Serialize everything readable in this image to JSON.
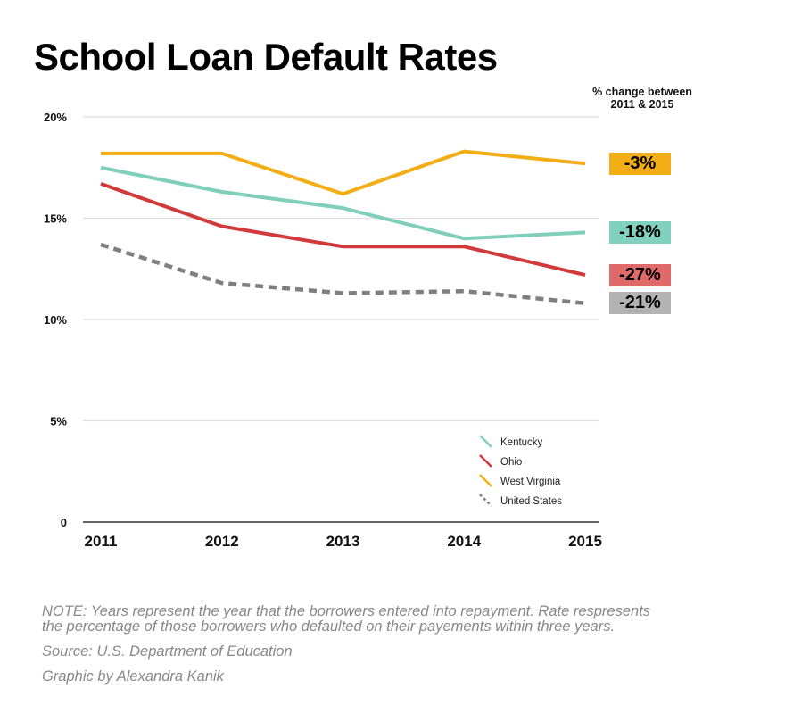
{
  "chart_data": {
    "type": "line",
    "title": "School Loan Default Rates",
    "xlabel": "",
    "ylabel": "",
    "x": [
      "2011",
      "2012",
      "2013",
      "2014",
      "2015"
    ],
    "ylim": [
      0,
      20
    ],
    "yticks": [
      0,
      5,
      10,
      15,
      20
    ],
    "ytick_labels": [
      "0",
      "5%",
      "10%",
      "15%",
      "20%"
    ],
    "grid": true,
    "legend_position": "bottom-right",
    "series": [
      {
        "name": "Kentucky",
        "values": [
          17.5,
          16.3,
          15.5,
          14.0,
          14.3
        ],
        "color": "#7fcfbb",
        "dashed": false,
        "change_label": "-18%",
        "badge_color": "#80d1bd"
      },
      {
        "name": "Ohio",
        "values": [
          16.7,
          14.6,
          13.6,
          13.6,
          12.2
        ],
        "color": "#d13a3a",
        "dashed": false,
        "change_label": "-27%",
        "badge_color": "#e06a6a"
      },
      {
        "name": "West Virginia",
        "values": [
          18.2,
          18.2,
          16.2,
          18.3,
          17.7
        ],
        "color": "#f2ae14",
        "dashed": false,
        "change_label": "-3%",
        "badge_color": "#f3ae15"
      },
      {
        "name": "United States",
        "values": [
          13.7,
          11.8,
          11.3,
          11.4,
          10.8
        ],
        "color": "#7f7f7f",
        "dashed": true,
        "change_label": "-21%",
        "badge_color": "#b3b3b3"
      }
    ],
    "annotations": {
      "change_header_line1": "% change between",
      "change_header_line2": "2011 & 2015"
    }
  },
  "footer": {
    "note_line1": "NOTE: Years represent the year that the borrowers entered into repayment. Rate respresents",
    "note_line2": "the percentage of those borrowers who defaulted on their payements within three years.",
    "source": "Source: U.S. Department of Education",
    "credit": "Graphic by Alexandra Kanik"
  }
}
